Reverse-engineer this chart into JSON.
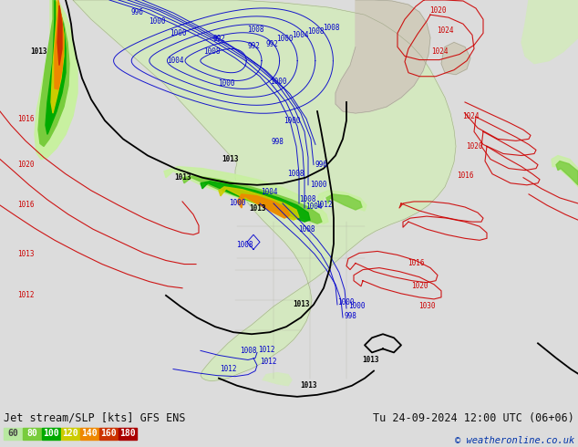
{
  "title_left": "Jet stream/SLP [kts] GFS ENS",
  "title_right": "Tu 24-09-2024 12:00 UTC (06+06)",
  "copyright": "© weatheronline.co.uk",
  "legend_values": [
    "60",
    "80",
    "100",
    "120",
    "140",
    "160",
    "180"
  ],
  "legend_colors": [
    "#b8e8a0",
    "#78cc3c",
    "#00aa00",
    "#cccc00",
    "#ee8800",
    "#cc3300",
    "#aa0000"
  ],
  "ocean_color": "#c8dce8",
  "land_color_light": "#d4e8c0",
  "land_color_dark": "#c0d4a8",
  "land_gray": "#c0b8a8",
  "bottom_bar_color": "#dcdcdc",
  "jet_60_color": "#c8f0a0",
  "jet_80_color": "#78cc3c",
  "jet_100_color": "#00aa00",
  "jet_120_color": "#cccc00",
  "jet_140_color": "#ee8800",
  "jet_160_color": "#cc3300",
  "jet_180_color": "#aa0000"
}
